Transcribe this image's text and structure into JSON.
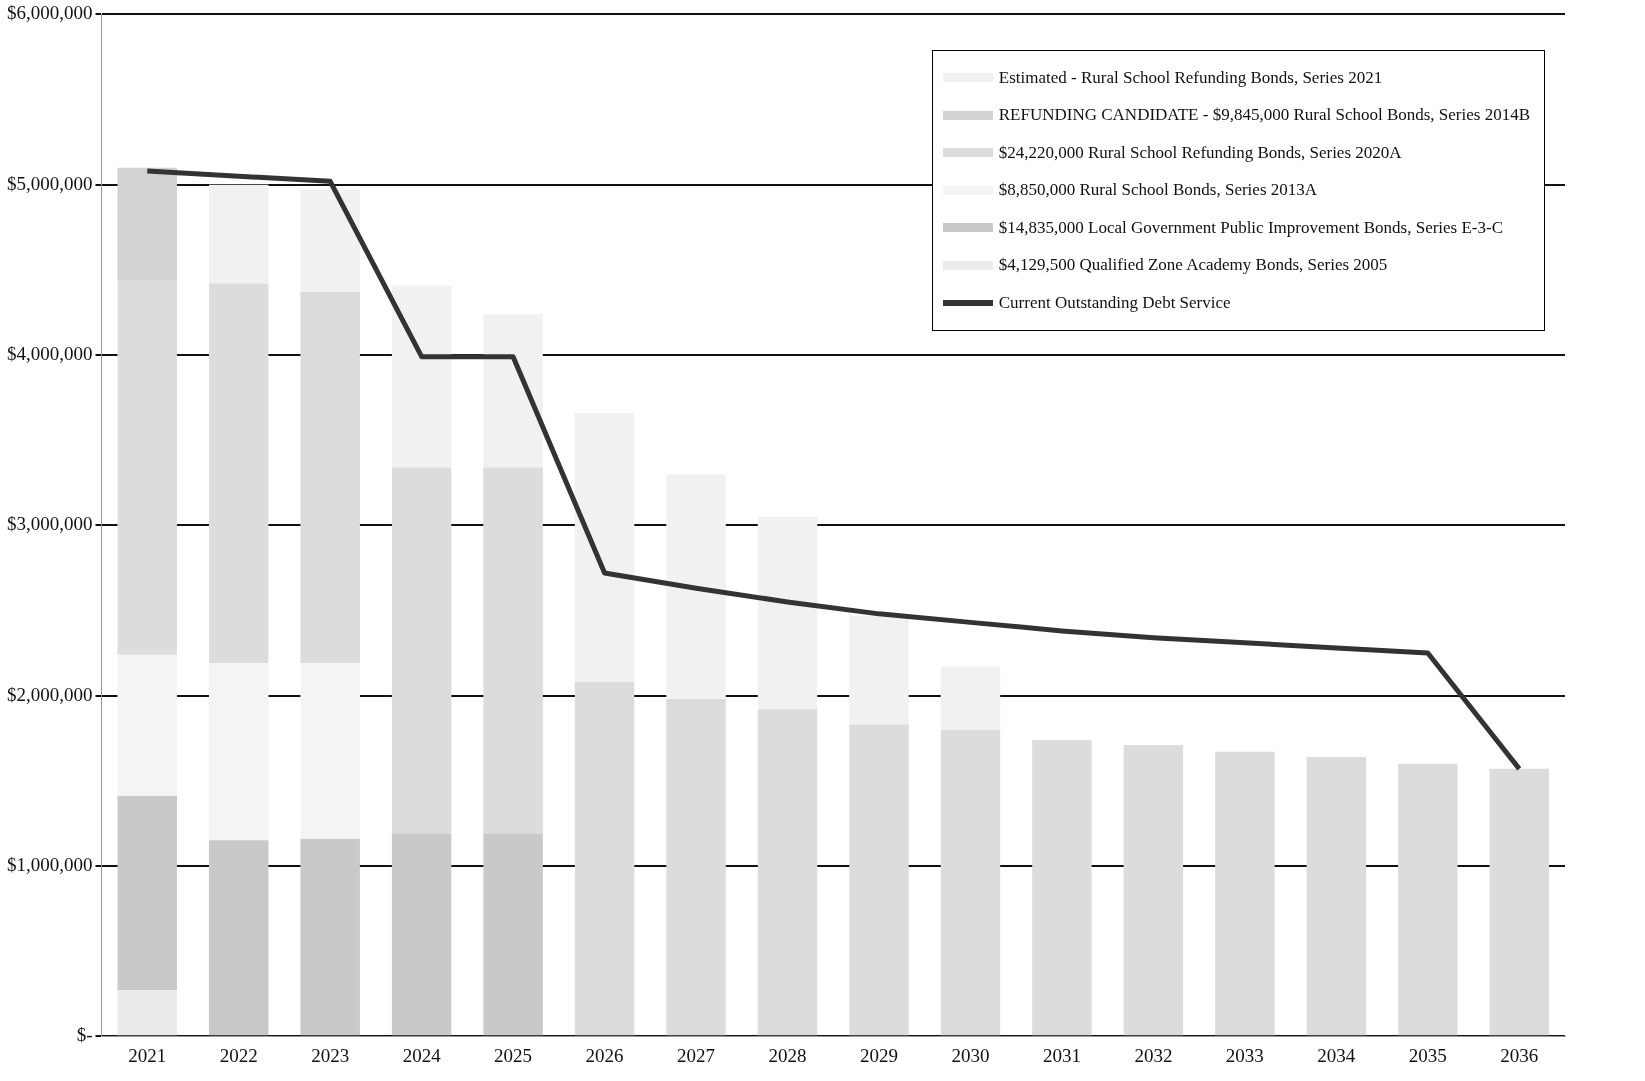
{
  "chart_data": {
    "type": "bar",
    "stacked": true,
    "categories": [
      "2021",
      "2022",
      "2023",
      "2024",
      "2025",
      "2026",
      "2027",
      "2028",
      "2029",
      "2030",
      "2031",
      "2032",
      "2033",
      "2034",
      "2035",
      "2036"
    ],
    "series": [
      {
        "name": "$4,129,500 Qualified Zone Academy Bonds, Series 2005",
        "color": "#ebebeb",
        "values": [
          270000,
          null,
          null,
          null,
          null,
          null,
          null,
          null,
          null,
          null,
          null,
          null,
          null,
          null,
          null,
          null
        ]
      },
      {
        "name": "$14,835,000 Local Government Public Improvement Bonds, Series E-3-C",
        "color": "#c9c9c9",
        "values": [
          1140000,
          1150000,
          1160000,
          1190000,
          1190000,
          null,
          null,
          null,
          null,
          null,
          null,
          null,
          null,
          null,
          null,
          null
        ]
      },
      {
        "name": "$8,850,000 Rural School Bonds, Series 2013A",
        "color": "#f4f4f4",
        "values": [
          830000,
          1040000,
          1030000,
          null,
          null,
          null,
          null,
          null,
          null,
          null,
          null,
          null,
          null,
          null,
          null,
          null
        ]
      },
      {
        "name": "$24,220,000 Rural School Refunding Bonds, Series 2020A",
        "color": "#dcdcdc",
        "values": [
          2200000,
          2230000,
          2180000,
          2150000,
          2150000,
          2080000,
          1980000,
          1920000,
          1830000,
          1800000,
          1740000,
          1710000,
          1670000,
          1640000,
          1600000,
          1570000
        ]
      },
      {
        "name": "REFUNDING CANDIDATE - $9,845,000 Rural School Bonds, Series 2014B",
        "color": "#d2d2d2",
        "values": [
          660000,
          null,
          null,
          null,
          null,
          null,
          null,
          null,
          null,
          null,
          null,
          null,
          null,
          null,
          null,
          null
        ]
      },
      {
        "name": "Estimated - Rural School Refunding Bonds, Series 2021",
        "color": "#f1f1f1",
        "values": [
          null,
          580000,
          600000,
          1070000,
          900000,
          1580000,
          1320000,
          1130000,
          640000,
          370000,
          null,
          null,
          null,
          null,
          null,
          null
        ]
      },
      {
        "name": "Current Outstanding Debt Service",
        "type": "line",
        "color": "#333333",
        "values": [
          5080000,
          5050000,
          5020000,
          3990000,
          3990000,
          2720000,
          2630000,
          2550000,
          2480000,
          2430000,
          2380000,
          2340000,
          2310000,
          2280000,
          2250000,
          1570000
        ]
      }
    ],
    "ylim": [
      0,
      6000000
    ],
    "yticks": [
      {
        "value": 0,
        "label": "$-"
      },
      {
        "value": 1000000,
        "label": "$1,000,000"
      },
      {
        "value": 2000000,
        "label": "$2,000,000"
      },
      {
        "value": 3000000,
        "label": "$3,000,000"
      },
      {
        "value": 4000000,
        "label": "$4,000,000"
      },
      {
        "value": 5000000,
        "label": "$5,000,000"
      },
      {
        "value": 6000000,
        "label": "$6,000,000"
      }
    ],
    "grid": "y",
    "legend": "top right",
    "marker": "none"
  }
}
